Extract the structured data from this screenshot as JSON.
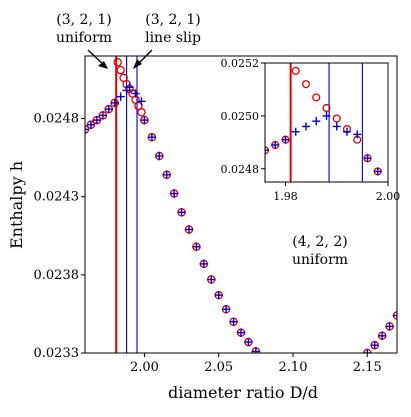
{
  "chart_data": {
    "type": "scatter",
    "xlabel": "diameter ratio D/d",
    "ylabel": "Enthalpy h",
    "xlim": [
      1.96,
      2.17
    ],
    "ylim": [
      0.0233,
      0.0252
    ],
    "x_ticks": [
      2.0,
      2.05,
      2.1,
      2.15
    ],
    "x_tick_labels": [
      "2.00",
      "2.05",
      "2.10",
      "2.15"
    ],
    "y_ticks": [
      0.0233,
      0.0238,
      0.0243,
      0.0248
    ],
    "y_tick_labels": [
      "0.0233",
      "0.0238",
      "0.0243",
      "0.0248"
    ],
    "vertical_lines": [
      {
        "x": 1.981,
        "color": "#e00000"
      },
      {
        "x": 1.988,
        "color": "#0000cc"
      },
      {
        "x": 1.995,
        "color": "#0000cc"
      }
    ],
    "series": [
      {
        "marker": "circle-open",
        "color": "#e00000",
        "x": [
          1.96,
          1.964,
          1.968,
          1.972,
          1.976,
          1.98,
          1.982,
          1.984,
          1.986,
          1.988,
          1.99,
          1.992,
          1.994,
          1.996,
          1.998,
          2.0,
          2.005,
          2.01,
          2.015,
          2.02,
          2.025,
          2.03,
          2.035,
          2.04,
          2.045,
          2.05,
          2.055,
          2.06,
          2.065,
          2.07,
          2.075,
          2.08,
          2.085,
          2.09,
          2.095,
          2.1,
          2.105,
          2.11,
          2.115,
          2.12,
          2.125,
          2.13,
          2.135,
          2.14,
          2.145,
          2.15,
          2.155,
          2.16,
          2.165,
          2.17
        ],
        "y": [
          0.02473,
          0.02476,
          0.02479,
          0.02482,
          0.02486,
          0.0249,
          0.02516,
          0.02511,
          0.02506,
          0.02502,
          0.02499,
          0.02496,
          0.02492,
          0.02488,
          0.02484,
          0.02479,
          0.02468,
          0.02456,
          0.02444,
          0.02432,
          0.0242,
          0.02409,
          0.02398,
          0.02387,
          0.02377,
          0.02367,
          0.02358,
          0.0235,
          0.02343,
          0.02337,
          0.02331,
          0.02326,
          0.02322,
          0.02318,
          0.02315,
          0.02313,
          0.02312,
          0.02311,
          0.02311,
          0.02312,
          0.02313,
          0.02315,
          0.02318,
          0.02321,
          0.02325,
          0.0233,
          0.02335,
          0.02341,
          0.02347,
          0.02354
        ]
      },
      {
        "marker": "plus",
        "color": "#0000cc",
        "x": [
          1.96,
          1.964,
          1.968,
          1.972,
          1.976,
          1.98,
          1.984,
          1.988,
          1.99,
          1.994,
          1.998,
          2.0,
          2.005,
          2.01,
          2.015,
          2.02,
          2.025,
          2.03,
          2.035,
          2.04,
          2.045,
          2.05,
          2.055,
          2.06,
          2.065,
          2.07,
          2.075,
          2.08,
          2.085,
          2.09,
          2.095,
          2.1,
          2.105,
          2.11,
          2.115,
          2.12,
          2.125,
          2.13,
          2.135,
          2.14,
          2.145,
          2.15,
          2.155,
          2.16,
          2.165,
          2.17
        ],
        "y": [
          0.02473,
          0.02476,
          0.02479,
          0.02482,
          0.02486,
          0.0249,
          0.02494,
          0.02498,
          0.025,
          0.02496,
          0.02491,
          0.02479,
          0.02468,
          0.02456,
          0.02444,
          0.02432,
          0.0242,
          0.02409,
          0.02398,
          0.02387,
          0.02377,
          0.02367,
          0.02358,
          0.0235,
          0.02343,
          0.02337,
          0.02331,
          0.02326,
          0.02322,
          0.02318,
          0.02315,
          0.02313,
          0.02312,
          0.02311,
          0.02311,
          0.02312,
          0.02313,
          0.02315,
          0.02318,
          0.02321,
          0.02325,
          0.0233,
          0.02335,
          0.02341,
          0.02347,
          0.02354
        ]
      }
    ],
    "annotations": [
      {
        "line1": "(3, 2, 1)",
        "line2": "uniform"
      },
      {
        "line1": "(3, 2, 1)",
        "line2": "line slip"
      },
      {
        "line1": "(4, 2, 2)",
        "line2": "uniform"
      }
    ],
    "inset": {
      "xlim": [
        1.976,
        2.0
      ],
      "ylim": [
        0.02475,
        0.0252
      ],
      "x_ticks": [
        1.98,
        2.0
      ],
      "x_tick_labels": [
        "1.98",
        "2.00"
      ],
      "y_ticks": [
        0.0248,
        0.025,
        0.0252
      ],
      "y_tick_labels": [
        "0.0248",
        "0.0250",
        "0.0252"
      ],
      "vertical_lines": [
        {
          "x": 1.981,
          "color": "#e00000"
        },
        {
          "x": 1.9885,
          "color": "#0000cc"
        },
        {
          "x": 1.995,
          "color": "#0000cc"
        }
      ],
      "series": [
        {
          "marker": "circle-open",
          "color": "#e00000",
          "x": [
            1.976,
            1.978,
            1.98,
            1.982,
            1.984,
            1.986,
            1.988,
            1.99,
            1.992,
            1.994,
            1.996,
            1.998
          ],
          "y": [
            0.02487,
            0.02489,
            0.02491,
            0.02517,
            0.02512,
            0.02507,
            0.02503,
            0.02499,
            0.02495,
            0.02491,
            0.02484,
            0.02479
          ]
        },
        {
          "marker": "plus",
          "color": "#0000cc",
          "x": [
            1.976,
            1.978,
            1.98,
            1.982,
            1.984,
            1.986,
            1.988,
            1.99,
            1.992,
            1.994,
            1.996,
            1.998
          ],
          "y": [
            0.02487,
            0.02489,
            0.02491,
            0.02494,
            0.02496,
            0.02498,
            0.025,
            0.02496,
            0.02494,
            0.02493,
            0.02484,
            0.02479
          ]
        }
      ]
    }
  }
}
